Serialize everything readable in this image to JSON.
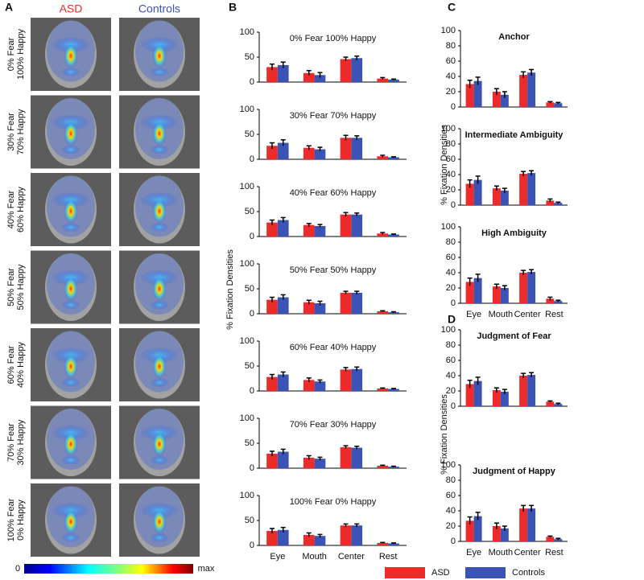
{
  "panel_labels": [
    "A",
    "B",
    "C",
    "D"
  ],
  "panel_a": {
    "columns": [
      "ASD",
      "Controls"
    ],
    "rows": [
      [
        "0% Fear",
        "100% Happy"
      ],
      [
        "30% Fear",
        "70% Happy"
      ],
      [
        "40% Fear",
        "60% Happy"
      ],
      [
        "50% Fear",
        "50% Happy"
      ],
      [
        "60% Fear",
        "40% Happy"
      ],
      [
        "70% Fear",
        "30% Happy"
      ],
      [
        "100% Fear",
        "0% Happy"
      ]
    ],
    "colorbar": [
      "0",
      "max"
    ]
  },
  "ylabel": "% Fixation Densities",
  "chart_data": [
    {
      "type": "bar",
      "title": "0% Fear 100% Happy",
      "categories": [
        null,
        null,
        null,
        null
      ],
      "ylim": [
        0,
        100
      ],
      "yticks": [
        0,
        50,
        100
      ],
      "series": [
        {
          "name": "ASD",
          "color": "#ee2b2b",
          "values": [
            30,
            18,
            46,
            7
          ],
          "errors": [
            6,
            5,
            4,
            2
          ]
        },
        {
          "name": "Controls",
          "color": "#3b53b5",
          "values": [
            34,
            14,
            48,
            5
          ],
          "errors": [
            6,
            5,
            4,
            1
          ]
        }
      ]
    },
    {
      "type": "bar",
      "title": "30% Fear 70% Happy",
      "categories": [
        null,
        null,
        null,
        null
      ],
      "ylim": [
        0,
        100
      ],
      "yticks": [
        0,
        50,
        100
      ],
      "series": [
        {
          "color": "#ee2b2b",
          "values": [
            27,
            23,
            43,
            6
          ],
          "errors": [
            6,
            4,
            5,
            2
          ]
        },
        {
          "color": "#3b53b5",
          "values": [
            33,
            20,
            43,
            4
          ],
          "errors": [
            6,
            4,
            4,
            1
          ]
        }
      ]
    },
    {
      "type": "bar",
      "title": "40% Fear 60% Happy",
      "categories": [
        null,
        null,
        null,
        null
      ],
      "ylim": [
        0,
        100
      ],
      "yticks": [
        0,
        50,
        100
      ],
      "series": [
        {
          "color": "#ee2b2b",
          "values": [
            28,
            23,
            44,
            6
          ],
          "errors": [
            5,
            3,
            4,
            2
          ]
        },
        {
          "color": "#3b53b5",
          "values": [
            33,
            21,
            44,
            4
          ],
          "errors": [
            5,
            3,
            3,
            1
          ]
        }
      ]
    },
    {
      "type": "bar",
      "title": "50% Fear 50% Happy",
      "categories": [
        null,
        null,
        null,
        null
      ],
      "ylim": [
        0,
        100
      ],
      "yticks": [
        0,
        50,
        100
      ],
      "series": [
        {
          "color": "#ee2b2b",
          "values": [
            28,
            23,
            42,
            5
          ],
          "errors": [
            5,
            4,
            3,
            1
          ]
        },
        {
          "color": "#3b53b5",
          "values": [
            33,
            21,
            42,
            3
          ],
          "errors": [
            5,
            4,
            3,
            1
          ]
        }
      ]
    },
    {
      "type": "bar",
      "title": "60% Fear 40% Happy",
      "categories": [
        null,
        null,
        null,
        null
      ],
      "ylim": [
        0,
        100
      ],
      "yticks": [
        0,
        50,
        100
      ],
      "series": [
        {
          "color": "#ee2b2b",
          "values": [
            28,
            22,
            43,
            5
          ],
          "errors": [
            5,
            4,
            4,
            1
          ]
        },
        {
          "color": "#3b53b5",
          "values": [
            33,
            19,
            44,
            4
          ],
          "errors": [
            5,
            3,
            4,
            1
          ]
        }
      ]
    },
    {
      "type": "bar",
      "title": "70% Fear 30% Happy",
      "categories": [
        null,
        null,
        null,
        null
      ],
      "ylim": [
        0,
        100
      ],
      "yticks": [
        0,
        50,
        100
      ],
      "series": [
        {
          "color": "#ee2b2b",
          "values": [
            29,
            21,
            42,
            5
          ],
          "errors": [
            5,
            4,
            3,
            1
          ]
        },
        {
          "color": "#3b53b5",
          "values": [
            33,
            19,
            41,
            3
          ],
          "errors": [
            5,
            3,
            3,
            1
          ]
        }
      ]
    },
    {
      "type": "bar",
      "title": "100% Fear 0% Happy",
      "categories": [
        "Eye",
        "Mouth",
        "Center",
        "Rest"
      ],
      "ylim": [
        0,
        100
      ],
      "yticks": [
        0,
        50,
        100
      ],
      "series": [
        {
          "color": "#ee2b2b",
          "values": [
            29,
            21,
            40,
            5
          ],
          "errors": [
            5,
            4,
            3,
            1
          ]
        },
        {
          "color": "#3b53b5",
          "values": [
            31,
            19,
            40,
            4
          ],
          "errors": [
            5,
            3,
            3,
            1
          ]
        }
      ]
    },
    {
      "type": "bar",
      "title": "Anchor",
      "categories": [
        null,
        null,
        null,
        null
      ],
      "ylim": [
        0,
        100
      ],
      "yticks": [
        0,
        20,
        40,
        60,
        80,
        100
      ],
      "series": [
        {
          "color": "#ee2b2b",
          "values": [
            30,
            20,
            42,
            6
          ],
          "errors": [
            5,
            4,
            4,
            1
          ]
        },
        {
          "color": "#3b53b5",
          "values": [
            34,
            16,
            45,
            5
          ],
          "errors": [
            5,
            4,
            4,
            1
          ]
        }
      ]
    },
    {
      "type": "bar",
      "title": "Intermediate Ambiguity",
      "categories": [
        null,
        null,
        null,
        null
      ],
      "ylim": [
        0,
        100
      ],
      "yticks": [
        0,
        20,
        40,
        60,
        80,
        100
      ],
      "series": [
        {
          "color": "#ee2b2b",
          "values": [
            28,
            22,
            41,
            6
          ],
          "errors": [
            5,
            3,
            3,
            2
          ]
        },
        {
          "color": "#3b53b5",
          "values": [
            33,
            19,
            42,
            3
          ],
          "errors": [
            5,
            3,
            3,
            1
          ]
        }
      ]
    },
    {
      "type": "bar",
      "title": "High Ambiguity",
      "categories": [
        "Eye",
        "Mouth",
        "Center",
        "Rest"
      ],
      "ylim": [
        0,
        100
      ],
      "yticks": [
        0,
        20,
        40,
        60,
        80,
        100
      ],
      "series": [
        {
          "color": "#ee2b2b",
          "values": [
            28,
            22,
            40,
            6
          ],
          "errors": [
            5,
            3,
            3,
            2
          ]
        },
        {
          "color": "#3b53b5",
          "values": [
            33,
            20,
            41,
            3
          ],
          "errors": [
            5,
            3,
            3,
            1
          ]
        }
      ]
    },
    {
      "type": "bar",
      "title": "Judgment of Fear",
      "categories": [
        null,
        null,
        null,
        null
      ],
      "ylim": [
        0,
        100
      ],
      "yticks": [
        0,
        20,
        40,
        60,
        80,
        100
      ],
      "series": [
        {
          "color": "#ee2b2b",
          "values": [
            29,
            21,
            40,
            6
          ],
          "errors": [
            5,
            3,
            3,
            1
          ]
        },
        {
          "color": "#3b53b5",
          "values": [
            33,
            19,
            41,
            3
          ],
          "errors": [
            5,
            3,
            3,
            1
          ]
        }
      ]
    },
    {
      "type": "bar",
      "title": "Judgment of Happy",
      "categories": [
        "Eye",
        "Mouth",
        "Center",
        "Rest"
      ],
      "ylim": [
        0,
        100
      ],
      "yticks": [
        0,
        20,
        40,
        60,
        80,
        100
      ],
      "series": [
        {
          "color": "#ee2b2b",
          "values": [
            27,
            20,
            43,
            6
          ],
          "errors": [
            5,
            4,
            4,
            1
          ]
        },
        {
          "color": "#3b53b5",
          "values": [
            33,
            17,
            43,
            3
          ],
          "errors": [
            5,
            3,
            4,
            1
          ]
        }
      ]
    }
  ]
}
